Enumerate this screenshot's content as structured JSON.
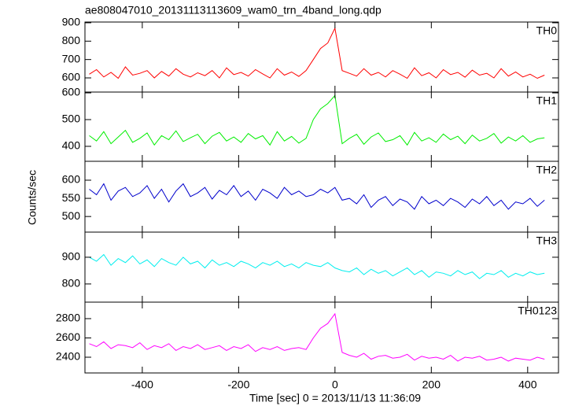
{
  "chart_data": {
    "type": "line",
    "title": "ae808047010_20131113113609_wam0_trn_4band_long.qdp",
    "xlabel": "Time [sec] 0 = 2013/11/13 11:36:09",
    "ylabel": "Counts/sec",
    "xlim": [
      -519,
      464
    ],
    "xticks": [
      -400,
      -200,
      0,
      200,
      400
    ],
    "x": [
      -510,
      -495,
      -480,
      -465,
      -450,
      -435,
      -420,
      -405,
      -390,
      -375,
      -360,
      -345,
      -330,
      -315,
      -300,
      -285,
      -270,
      -255,
      -240,
      -225,
      -210,
      -195,
      -180,
      -165,
      -150,
      -135,
      -120,
      -105,
      -90,
      -75,
      -60,
      -45,
      -30,
      -15,
      0,
      15,
      30,
      45,
      60,
      75,
      90,
      105,
      120,
      135,
      150,
      165,
      180,
      195,
      210,
      225,
      240,
      255,
      270,
      285,
      300,
      315,
      330,
      345,
      360,
      375,
      390,
      405,
      420,
      435
    ],
    "series": [
      {
        "name": "TH0",
        "color": "#ff0000",
        "ylim": [
          523,
          904
        ],
        "yticks": [
          600,
          700,
          800,
          900
        ],
        "values": [
          620,
          645,
          605,
          630,
          598,
          660,
          615,
          625,
          640,
          600,
          635,
          610,
          650,
          620,
          605,
          628,
          612,
          640,
          600,
          655,
          618,
          630,
          610,
          645,
          622,
          600,
          650,
          615,
          632,
          608,
          640,
          700,
          760,
          790,
          870,
          640,
          625,
          610,
          650,
          615,
          630,
          605,
          640,
          620,
          598,
          655,
          612,
          628,
          600,
          645,
          618,
          630,
          604,
          642,
          615,
          625,
          600,
          650,
          610,
          632,
          605,
          620,
          598,
          615
        ]
      },
      {
        "name": "TH1",
        "color": "#00ee00",
        "ylim": [
          344,
          603
        ],
        "yticks": [
          400,
          500,
          600
        ],
        "values": [
          440,
          420,
          455,
          410,
          435,
          460,
          415,
          430,
          450,
          405,
          440,
          425,
          458,
          418,
          432,
          445,
          410,
          438,
          452,
          420,
          435,
          415,
          448,
          428,
          440,
          405,
          455,
          420,
          437,
          412,
          430,
          500,
          540,
          560,
          590,
          410,
          430,
          445,
          408,
          435,
          450,
          418,
          425,
          440,
          405,
          452,
          420,
          432,
          415,
          446,
          425,
          438,
          410,
          442,
          420,
          430,
          448,
          412,
          435,
          420,
          440,
          415,
          428,
          432
        ]
      },
      {
        "name": "TH2",
        "color": "#0000cc",
        "ylim": [
          457,
          652
        ],
        "yticks": [
          500,
          550,
          600
        ],
        "values": [
          575,
          560,
          590,
          545,
          570,
          580,
          555,
          565,
          585,
          550,
          575,
          540,
          570,
          590,
          555,
          565,
          580,
          548,
          572,
          560,
          585,
          555,
          570,
          545,
          575,
          565,
          550,
          580,
          560,
          570,
          555,
          560,
          575,
          565,
          580,
          545,
          550,
          535,
          560,
          525,
          545,
          555,
          530,
          548,
          540,
          520,
          555,
          535,
          545,
          530,
          550,
          540,
          525,
          548,
          535,
          555,
          530,
          545,
          520,
          540,
          535,
          550,
          528,
          545
        ]
      },
      {
        "name": "TH3",
        "color": "#00eeee",
        "ylim": [
          732,
          994
        ],
        "yticks": [
          800,
          900
        ],
        "values": [
          900,
          885,
          910,
          870,
          895,
          880,
          905,
          875,
          890,
          865,
          895,
          880,
          870,
          900,
          875,
          885,
          860,
          890,
          870,
          880,
          865,
          885,
          875,
          860,
          880,
          870,
          885,
          865,
          875,
          860,
          880,
          870,
          865,
          880,
          860,
          850,
          845,
          860,
          835,
          855,
          840,
          850,
          830,
          845,
          860,
          835,
          850,
          825,
          845,
          840,
          830,
          850,
          835,
          845,
          820,
          840,
          835,
          850,
          825,
          840,
          830,
          845,
          835,
          840
        ]
      },
      {
        "name": "TH0123",
        "color": "#ff00ff",
        "ylim": [
          2237,
          2971
        ],
        "yticks": [
          2400,
          2600,
          2800
        ],
        "values": [
          2540,
          2510,
          2560,
          2490,
          2530,
          2520,
          2500,
          2550,
          2480,
          2520,
          2500,
          2540,
          2470,
          2510,
          2490,
          2530,
          2480,
          2500,
          2520,
          2470,
          2510,
          2490,
          2530,
          2460,
          2500,
          2480,
          2510,
          2470,
          2490,
          2500,
          2480,
          2600,
          2700,
          2750,
          2850,
          2450,
          2420,
          2400,
          2440,
          2380,
          2410,
          2420,
          2390,
          2400,
          2430,
          2370,
          2410,
          2390,
          2400,
          2380,
          2420,
          2360,
          2400,
          2390,
          2410,
          2370,
          2380,
          2400,
          2360,
          2390,
          2380,
          2370,
          2400,
          2380
        ]
      }
    ]
  }
}
